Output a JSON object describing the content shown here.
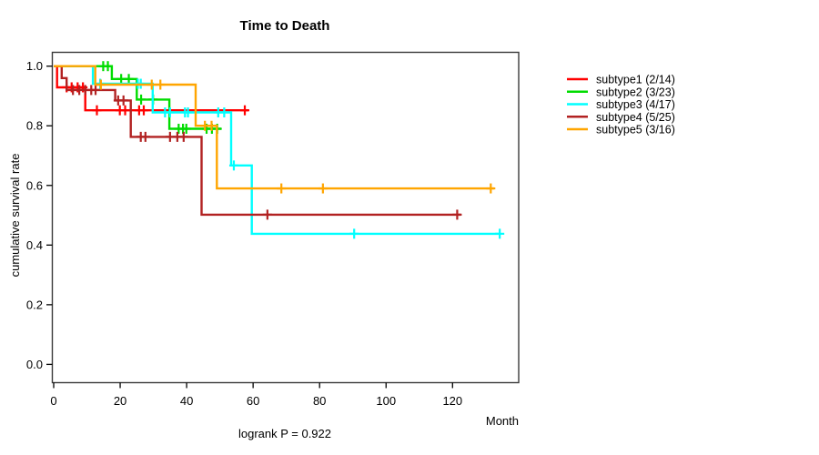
{
  "figure": {
    "title": "Time to Death",
    "footer": "logrank P = 0.922"
  },
  "chart_data": {
    "type": "line",
    "subtype": "kaplan-meier-step-curves",
    "title": "Time to Death",
    "xlabel": "Month",
    "ylabel": "cumulative survival rate",
    "x_ticks": [
      0,
      20,
      40,
      60,
      80,
      100,
      120
    ],
    "y_ticks": [
      "0.0",
      "0.2",
      "0.4",
      "0.6",
      "0.8",
      "1.0"
    ],
    "xlim": [
      0,
      135
    ],
    "ylim": [
      0.0,
      1.0
    ],
    "grid": false,
    "legend_position": "right-outside",
    "annotation": "logrank P = 0.922",
    "series": [
      {
        "name": "subtype1 (2/14)",
        "events": 2,
        "n": 14,
        "color": "#ff0000",
        "steps": [
          [
            0,
            1
          ],
          [
            1,
            1
          ],
          [
            1,
            0.929
          ],
          [
            9.5,
            0.929
          ],
          [
            9.5,
            0.852
          ],
          [
            58.6,
            0.852
          ]
        ],
        "censors": [
          [
            3.9,
            0.929
          ],
          [
            5.4,
            0.929
          ],
          [
            7.2,
            0.929
          ],
          [
            8.8,
            0.929
          ],
          [
            13,
            0.852
          ],
          [
            19.9,
            0.852
          ],
          [
            21.5,
            0.852
          ],
          [
            25.7,
            0.852
          ],
          [
            27.1,
            0.852
          ],
          [
            57.5,
            0.852
          ]
        ]
      },
      {
        "name": "subtype2 (3/23)",
        "events": 3,
        "n": 23,
        "color": "#00dc00",
        "steps": [
          [
            0,
            1
          ],
          [
            17.5,
            1
          ],
          [
            17.5,
            0.957
          ],
          [
            25,
            0.957
          ],
          [
            25,
            0.888
          ],
          [
            34.8,
            0.888
          ],
          [
            34.8,
            0.79
          ],
          [
            50.4,
            0.79
          ]
        ],
        "censors": [
          [
            14.9,
            1
          ],
          [
            16.3,
            1
          ],
          [
            20.3,
            0.957
          ],
          [
            22.6,
            0.957
          ],
          [
            26.3,
            0.888
          ],
          [
            29.9,
            0.888
          ],
          [
            37.6,
            0.79
          ],
          [
            38.9,
            0.79
          ],
          [
            39.9,
            0.79
          ],
          [
            46,
            0.79
          ],
          [
            47.6,
            0.79
          ],
          [
            49.2,
            0.79
          ]
        ]
      },
      {
        "name": "subtype3 (4/17)",
        "events": 4,
        "n": 17,
        "color": "#00ffff",
        "steps": [
          [
            0,
            1
          ],
          [
            11.8,
            1
          ],
          [
            11.8,
            0.941
          ],
          [
            29.8,
            0.941
          ],
          [
            29.8,
            0.845
          ],
          [
            53.4,
            0.845
          ],
          [
            53.4,
            0.667
          ],
          [
            59.6,
            0.667
          ],
          [
            59.6,
            0.438
          ],
          [
            134.5,
            0.438
          ]
        ],
        "censors": [
          [
            14,
            0.941
          ],
          [
            25.3,
            0.941
          ],
          [
            26.2,
            0.941
          ],
          [
            33.5,
            0.845
          ],
          [
            35,
            0.845
          ],
          [
            39.5,
            0.845
          ],
          [
            40.4,
            0.845
          ],
          [
            49.5,
            0.845
          ],
          [
            51.3,
            0.845
          ],
          [
            54.2,
            0.667
          ],
          [
            90.4,
            0.438
          ],
          [
            134.2,
            0.438
          ]
        ]
      },
      {
        "name": "subtype4 (5/25)",
        "events": 5,
        "n": 25,
        "color": "#b22222",
        "steps": [
          [
            0,
            1
          ],
          [
            2.4,
            1
          ],
          [
            2.4,
            0.96
          ],
          [
            3.9,
            0.96
          ],
          [
            3.9,
            0.92
          ],
          [
            18.5,
            0.92
          ],
          [
            18.5,
            0.885
          ],
          [
            23.2,
            0.885
          ],
          [
            23.2,
            0.763
          ],
          [
            44.5,
            0.763
          ],
          [
            44.5,
            0.502
          ],
          [
            122.5,
            0.502
          ]
        ],
        "censors": [
          [
            5.8,
            0.92
          ],
          [
            7.7,
            0.92
          ],
          [
            9.5,
            0.92
          ],
          [
            11.3,
            0.92
          ],
          [
            12.6,
            0.92
          ],
          [
            19.4,
            0.885
          ],
          [
            21,
            0.885
          ],
          [
            26.2,
            0.763
          ],
          [
            27.6,
            0.763
          ],
          [
            35,
            0.763
          ],
          [
            37.2,
            0.763
          ],
          [
            39.1,
            0.763
          ],
          [
            64.3,
            0.502
          ],
          [
            121.4,
            0.502
          ]
        ]
      },
      {
        "name": "subtype5 (3/16)",
        "events": 3,
        "n": 16,
        "color": "#ffa500",
        "steps": [
          [
            0,
            1
          ],
          [
            12.5,
            1
          ],
          [
            12.5,
            0.938
          ],
          [
            42.7,
            0.938
          ],
          [
            42.7,
            0.8
          ],
          [
            49.1,
            0.8
          ],
          [
            49.1,
            0.59
          ],
          [
            132.5,
            0.59
          ]
        ],
        "censors": [
          [
            14.2,
            0.938
          ],
          [
            29.5,
            0.938
          ],
          [
            32.1,
            0.938
          ],
          [
            45.5,
            0.8
          ],
          [
            47.5,
            0.8
          ],
          [
            68.5,
            0.59
          ],
          [
            81,
            0.59
          ],
          [
            131.5,
            0.59
          ]
        ]
      }
    ]
  }
}
